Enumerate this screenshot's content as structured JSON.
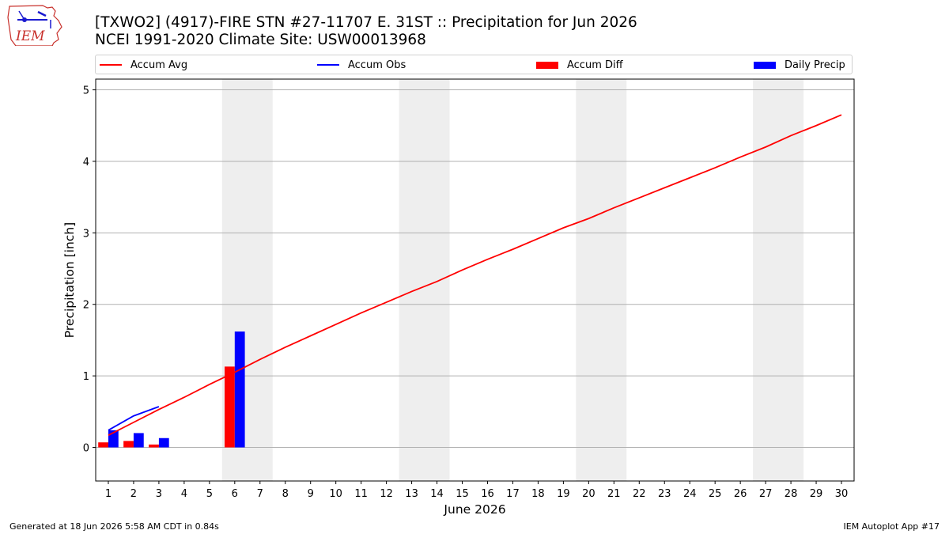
{
  "logo": {
    "text": "IEM"
  },
  "title": {
    "line1": "[TXWO2] (4917)-FIRE STN #27-11707 E. 31ST :: Precipitation for Jun 2026",
    "line2": "NCEI 1991-2020 Climate Site: USW00013968"
  },
  "legend": [
    {
      "label": "Accum Avg",
      "color": "#ff0000",
      "kind": "line"
    },
    {
      "label": "Accum Obs",
      "color": "#0000ff",
      "kind": "line"
    },
    {
      "label": "Accum Diff",
      "color": "#ff0000",
      "kind": "bar"
    },
    {
      "label": "Daily Precip",
      "color": "#0000ff",
      "kind": "bar"
    }
  ],
  "footer": {
    "left": "Generated at 18 Jun 2026 5:58 AM CDT in 0.84s",
    "right": "IEM Autoplot App #17"
  },
  "chart_data": {
    "type": "bar",
    "xlabel": "June 2026",
    "ylabel": "Precipitation [inch]",
    "x": [
      1,
      2,
      3,
      4,
      5,
      6,
      7,
      8,
      9,
      10,
      11,
      12,
      13,
      14,
      15,
      16,
      17,
      18,
      19,
      20,
      21,
      22,
      23,
      24,
      25,
      26,
      27,
      28,
      29,
      30
    ],
    "xlim": [
      0.5,
      30.5
    ],
    "ylim": [
      -0.47,
      5.15
    ],
    "yticks": [
      0,
      1,
      2,
      3,
      4,
      5
    ],
    "grid": "horizontal",
    "legend_position": "top",
    "weekend_shading": [
      [
        5.5,
        7.5
      ],
      [
        12.5,
        14.5
      ],
      [
        19.5,
        21.5
      ],
      [
        26.5,
        28.5
      ]
    ],
    "series": [
      {
        "name": "Accum Avg",
        "type": "line",
        "color": "#ff0000",
        "x": [
          1,
          2,
          3,
          4,
          5,
          6,
          7,
          8,
          9,
          10,
          11,
          12,
          13,
          14,
          15,
          16,
          17,
          18,
          19,
          20,
          21,
          22,
          23,
          24,
          25,
          26,
          27,
          28,
          29,
          30
        ],
        "values": [
          0.17,
          0.35,
          0.53,
          0.7,
          0.88,
          1.05,
          1.23,
          1.4,
          1.56,
          1.72,
          1.88,
          2.03,
          2.18,
          2.32,
          2.48,
          2.63,
          2.77,
          2.92,
          3.07,
          3.2,
          3.35,
          3.49,
          3.63,
          3.77,
          3.91,
          4.06,
          4.2,
          4.36,
          4.5,
          4.65
        ]
      },
      {
        "name": "Accum Obs",
        "type": "line",
        "color": "#0000ff",
        "x": [
          1,
          2,
          3
        ],
        "values": [
          0.24,
          0.44,
          0.57
        ]
      },
      {
        "name": "Accum Diff",
        "type": "bar",
        "color": "#ff0000",
        "x": [
          1,
          2,
          3,
          6
        ],
        "values": [
          0.07,
          0.09,
          0.04,
          1.13
        ]
      },
      {
        "name": "Daily Precip",
        "type": "bar",
        "color": "#0000ff",
        "x": [
          1,
          2,
          3,
          6
        ],
        "values": [
          0.24,
          0.2,
          0.13,
          1.62
        ]
      }
    ]
  }
}
